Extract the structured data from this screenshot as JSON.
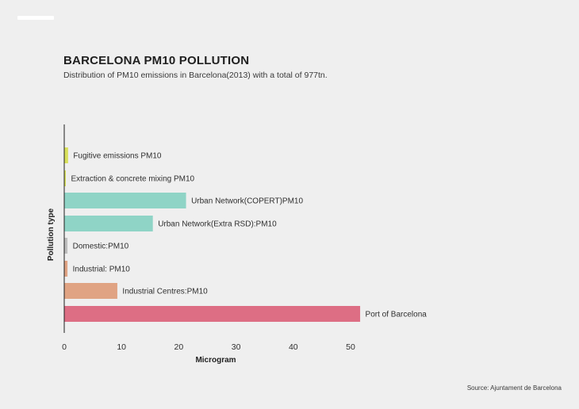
{
  "header": {
    "title": "BARCELONA PM10 POLLUTION",
    "subtitle": "Distribution of PM10 emissions in Barcelona(2013) with a total of 977tn."
  },
  "footer": {
    "source": "Source: Ajuntament de Barcelona"
  },
  "chart_data": {
    "type": "bar",
    "orientation": "horizontal",
    "xlabel": "Microgram",
    "ylabel": "Pollution type",
    "xlim": [
      0,
      53
    ],
    "xticks": [
      0,
      10,
      20,
      30,
      40,
      50
    ],
    "grid": false,
    "legend": "none",
    "categories": [
      "Fugitive emissions PM10",
      "Extraction & concrete mixing PM10",
      "Urban Network(COPERT)PM10",
      "Urban Network(Extra RSD):PM10",
      "Domestic:PM10",
      "Industrial: PM10",
      "Industrial Centres:PM10",
      "Port of Barcelona"
    ],
    "values": [
      0.6,
      0.2,
      21.2,
      15.4,
      0.5,
      0.5,
      9.2,
      51.6
    ],
    "colors": [
      "#d8e05a",
      "#d8e05a",
      "#8fd4c6",
      "#8fd4c6",
      "#bdbdbd",
      "#e0a383",
      "#e0a383",
      "#dd6e84"
    ]
  }
}
